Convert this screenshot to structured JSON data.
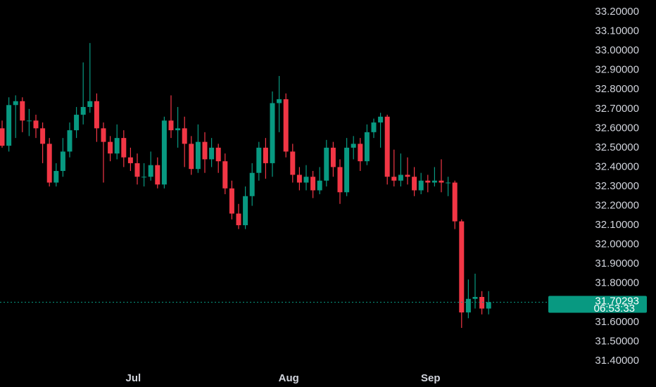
{
  "chart_data": {
    "type": "candlestick",
    "categories": [
      null,
      null,
      null,
      null,
      null,
      null,
      null,
      null,
      null,
      null,
      null,
      null,
      null,
      null,
      null,
      null,
      null,
      null,
      null,
      "Jul",
      null,
      null,
      null,
      null,
      null,
      null,
      null,
      null,
      null,
      null,
      null,
      null,
      null,
      null,
      null,
      null,
      null,
      null,
      null,
      null,
      null,
      null,
      "Aug",
      null,
      null,
      null,
      null,
      null,
      null,
      null,
      null,
      null,
      null,
      null,
      null,
      null,
      null,
      null,
      null,
      null,
      null,
      null,
      null,
      "Sep",
      null,
      null,
      null,
      null,
      null,
      null,
      null,
      null,
      null
    ],
    "open": [
      32.6,
      32.51,
      32.72,
      32.74,
      32.64,
      32.64,
      32.6,
      32.52,
      32.32,
      32.38,
      32.48,
      32.59,
      32.67,
      32.71,
      32.74,
      32.6,
      32.53,
      32.47,
      32.55,
      32.45,
      32.42,
      32.35,
      32.35,
      32.41,
      32.31,
      32.64,
      32.59,
      32.6,
      32.52,
      32.39,
      32.53,
      32.44,
      32.5,
      32.43,
      32.29,
      32.16,
      32.1,
      32.25,
      32.37,
      32.5,
      32.42,
      32.73,
      32.75,
      32.48,
      32.36,
      32.32,
      32.35,
      32.28,
      32.33,
      32.5,
      32.4,
      32.27,
      32.5,
      32.52,
      32.43,
      32.58,
      32.63,
      32.66,
      32.35,
      32.33,
      32.36,
      32.35,
      32.28,
      32.33,
      32.32,
      32.33,
      32.32,
      32.32,
      32.12,
      31.65,
      31.72,
      31.73,
      31.67
    ],
    "high": [
      32.64,
      32.76,
      32.77,
      32.76,
      32.7,
      32.67,
      32.63,
      32.55,
      32.42,
      32.55,
      32.63,
      32.71,
      32.94,
      33.04,
      32.78,
      32.63,
      32.56,
      32.62,
      32.59,
      32.5,
      32.47,
      32.42,
      32.48,
      32.45,
      32.66,
      32.77,
      32.71,
      32.66,
      32.56,
      32.62,
      32.58,
      32.55,
      32.52,
      32.47,
      32.33,
      32.21,
      32.3,
      32.42,
      32.53,
      32.55,
      32.79,
      32.87,
      32.78,
      32.52,
      32.4,
      32.41,
      32.38,
      32.4,
      32.54,
      32.53,
      32.44,
      32.55,
      32.56,
      32.55,
      32.62,
      32.65,
      32.68,
      32.67,
      32.49,
      32.47,
      32.45,
      32.4,
      32.37,
      32.36,
      32.4,
      32.44,
      32.35,
      32.33,
      32.13,
      31.82,
      31.85,
      31.76,
      31.76
    ],
    "low": [
      32.5,
      32.48,
      32.55,
      32.58,
      32.56,
      32.55,
      32.42,
      32.3,
      32.3,
      32.35,
      32.45,
      32.55,
      32.62,
      32.68,
      32.53,
      32.32,
      32.43,
      32.44,
      32.4,
      32.38,
      32.31,
      32.3,
      32.33,
      32.29,
      32.29,
      32.55,
      32.5,
      32.4,
      32.36,
      32.37,
      32.37,
      32.4,
      32.37,
      32.26,
      32.13,
      32.08,
      32.08,
      32.2,
      32.33,
      32.34,
      32.35,
      32.58,
      32.45,
      32.32,
      32.28,
      32.28,
      32.24,
      32.26,
      32.3,
      32.35,
      32.21,
      32.25,
      32.44,
      32.38,
      32.41,
      32.55,
      32.5,
      32.31,
      32.3,
      32.3,
      32.31,
      32.25,
      32.26,
      32.27,
      32.3,
      32.27,
      32.25,
      32.08,
      31.57,
      31.62,
      31.67,
      31.64,
      31.64
    ],
    "close": [
      32.51,
      32.72,
      32.74,
      32.64,
      32.64,
      32.6,
      32.52,
      32.32,
      32.38,
      32.48,
      32.59,
      32.67,
      32.71,
      32.74,
      32.6,
      32.53,
      32.47,
      32.55,
      32.45,
      32.42,
      32.35,
      32.35,
      32.41,
      32.31,
      32.64,
      32.59,
      32.6,
      32.52,
      32.39,
      32.53,
      32.44,
      32.5,
      32.43,
      32.29,
      32.16,
      32.1,
      32.25,
      32.37,
      32.5,
      32.42,
      32.73,
      32.75,
      32.48,
      32.36,
      32.32,
      32.35,
      32.28,
      32.33,
      32.5,
      32.4,
      32.27,
      32.5,
      32.52,
      32.43,
      32.58,
      32.63,
      32.66,
      32.35,
      32.33,
      32.36,
      32.35,
      32.28,
      32.33,
      32.32,
      32.33,
      32.32,
      32.32,
      32.12,
      31.65,
      31.72,
      31.73,
      31.67,
      31.70293
    ],
    "up_color": "#089981",
    "down_color": "#f23645",
    "countdown": "06:53:33",
    "ylim": [
      31.356,
      33.262
    ],
    "yticks": [
      {
        "value": 31.4,
        "label": "31.40000"
      },
      {
        "value": 31.5,
        "label": "31.50000"
      },
      {
        "value": 31.6,
        "label": "31.60000"
      },
      {
        "value": 31.7,
        "label": "31.70000"
      },
      {
        "value": 31.8,
        "label": "31.80000"
      },
      {
        "value": 31.9,
        "label": "31.90000"
      },
      {
        "value": 32.0,
        "label": "32.00000"
      },
      {
        "value": 32.1,
        "label": "32.10000"
      },
      {
        "value": 32.2,
        "label": "32.20000"
      },
      {
        "value": 32.3,
        "label": "32.30000"
      },
      {
        "value": 32.4,
        "label": "32.40000"
      },
      {
        "value": 32.5,
        "label": "32.50000"
      },
      {
        "value": 32.6,
        "label": "32.60000"
      },
      {
        "value": 32.7,
        "label": "32.70000"
      },
      {
        "value": 32.8,
        "label": "32.80000"
      },
      {
        "value": 32.9,
        "label": "32.90000"
      },
      {
        "value": 33.0,
        "label": "33.00000"
      },
      {
        "value": 33.1,
        "label": "33.10000"
      },
      {
        "value": 33.2,
        "label": "33.20000"
      }
    ]
  }
}
